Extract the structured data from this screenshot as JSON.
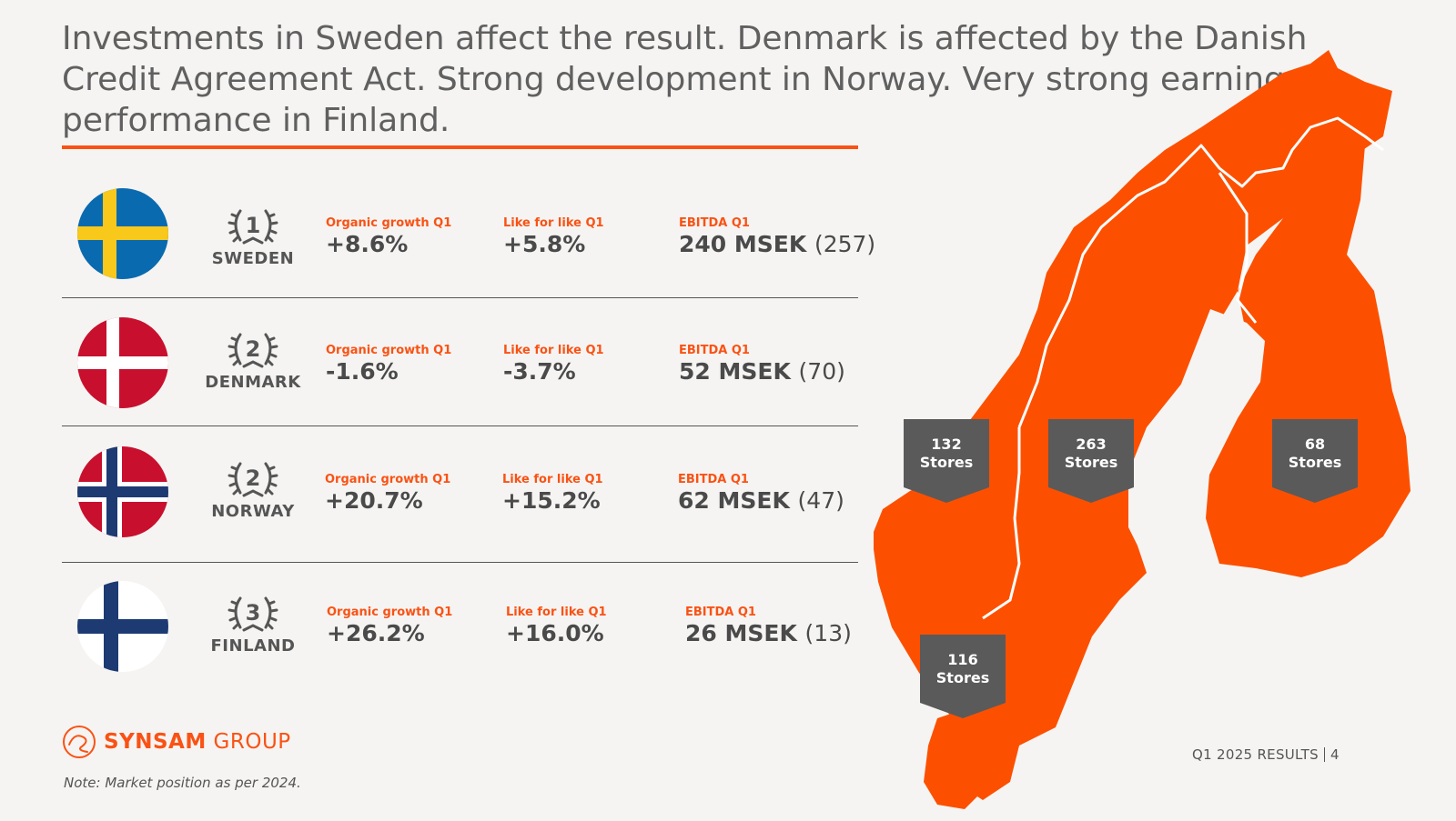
{
  "title": "Investments in Sweden affect the result. Denmark is affected by the Danish Credit Agreement Act. Strong development in Norway. Very strong earnings performance in Finland.",
  "colors": {
    "accent": "#fa5214",
    "map": "#fc5000",
    "pin": "#5a5a5a",
    "text": "#4a4a4a"
  },
  "countries": [
    {
      "rank": "1",
      "name": "SWEDEN",
      "organic_label": "Organic growth Q1",
      "organic_value": "+8.6%",
      "lfl_label": "Like for like Q1",
      "lfl_value": "+5.8%",
      "ebitda_label": "EBITDA Q1",
      "ebitda_value": "240 MSEK",
      "ebitda_prev": "(257)"
    },
    {
      "rank": "2",
      "name": "DENMARK",
      "organic_label": "Organic growth Q1",
      "organic_value": "-1.6%",
      "lfl_label": "Like for like Q1",
      "lfl_value": "-3.7%",
      "ebitda_label": "EBITDA Q1",
      "ebitda_value": "52 MSEK",
      "ebitda_prev": "(70)"
    },
    {
      "rank": "2",
      "name": "NORWAY",
      "organic_label": "Organic growth Q1",
      "organic_value": "+20.7%",
      "lfl_label": "Like for like Q1",
      "lfl_value": "+15.2%",
      "ebitda_label": "EBITDA Q1",
      "ebitda_value": "62 MSEK",
      "ebitda_prev": "(47)"
    },
    {
      "rank": "3",
      "name": "FINLAND",
      "organic_label": "Organic growth Q1",
      "organic_value": "+26.2%",
      "lfl_label": "Like for like Q1",
      "lfl_value": "+16.0%",
      "ebitda_label": "EBITDA Q1",
      "ebitda_value": "26 MSEK",
      "ebitda_prev": "(13)"
    }
  ],
  "stores": {
    "norway": {
      "count": "132",
      "label": "Stores"
    },
    "sweden": {
      "count": "263",
      "label": "Stores"
    },
    "finland": {
      "count": "68",
      "label": "Stores"
    },
    "denmark": {
      "count": "116",
      "label": "Stores"
    }
  },
  "logo": {
    "brand": "SYNSAM",
    "suffix": "GROUP"
  },
  "note": "Note: Market position as per 2024.",
  "footer": {
    "label": "Q1 2025 RESULTS",
    "page": "4"
  }
}
